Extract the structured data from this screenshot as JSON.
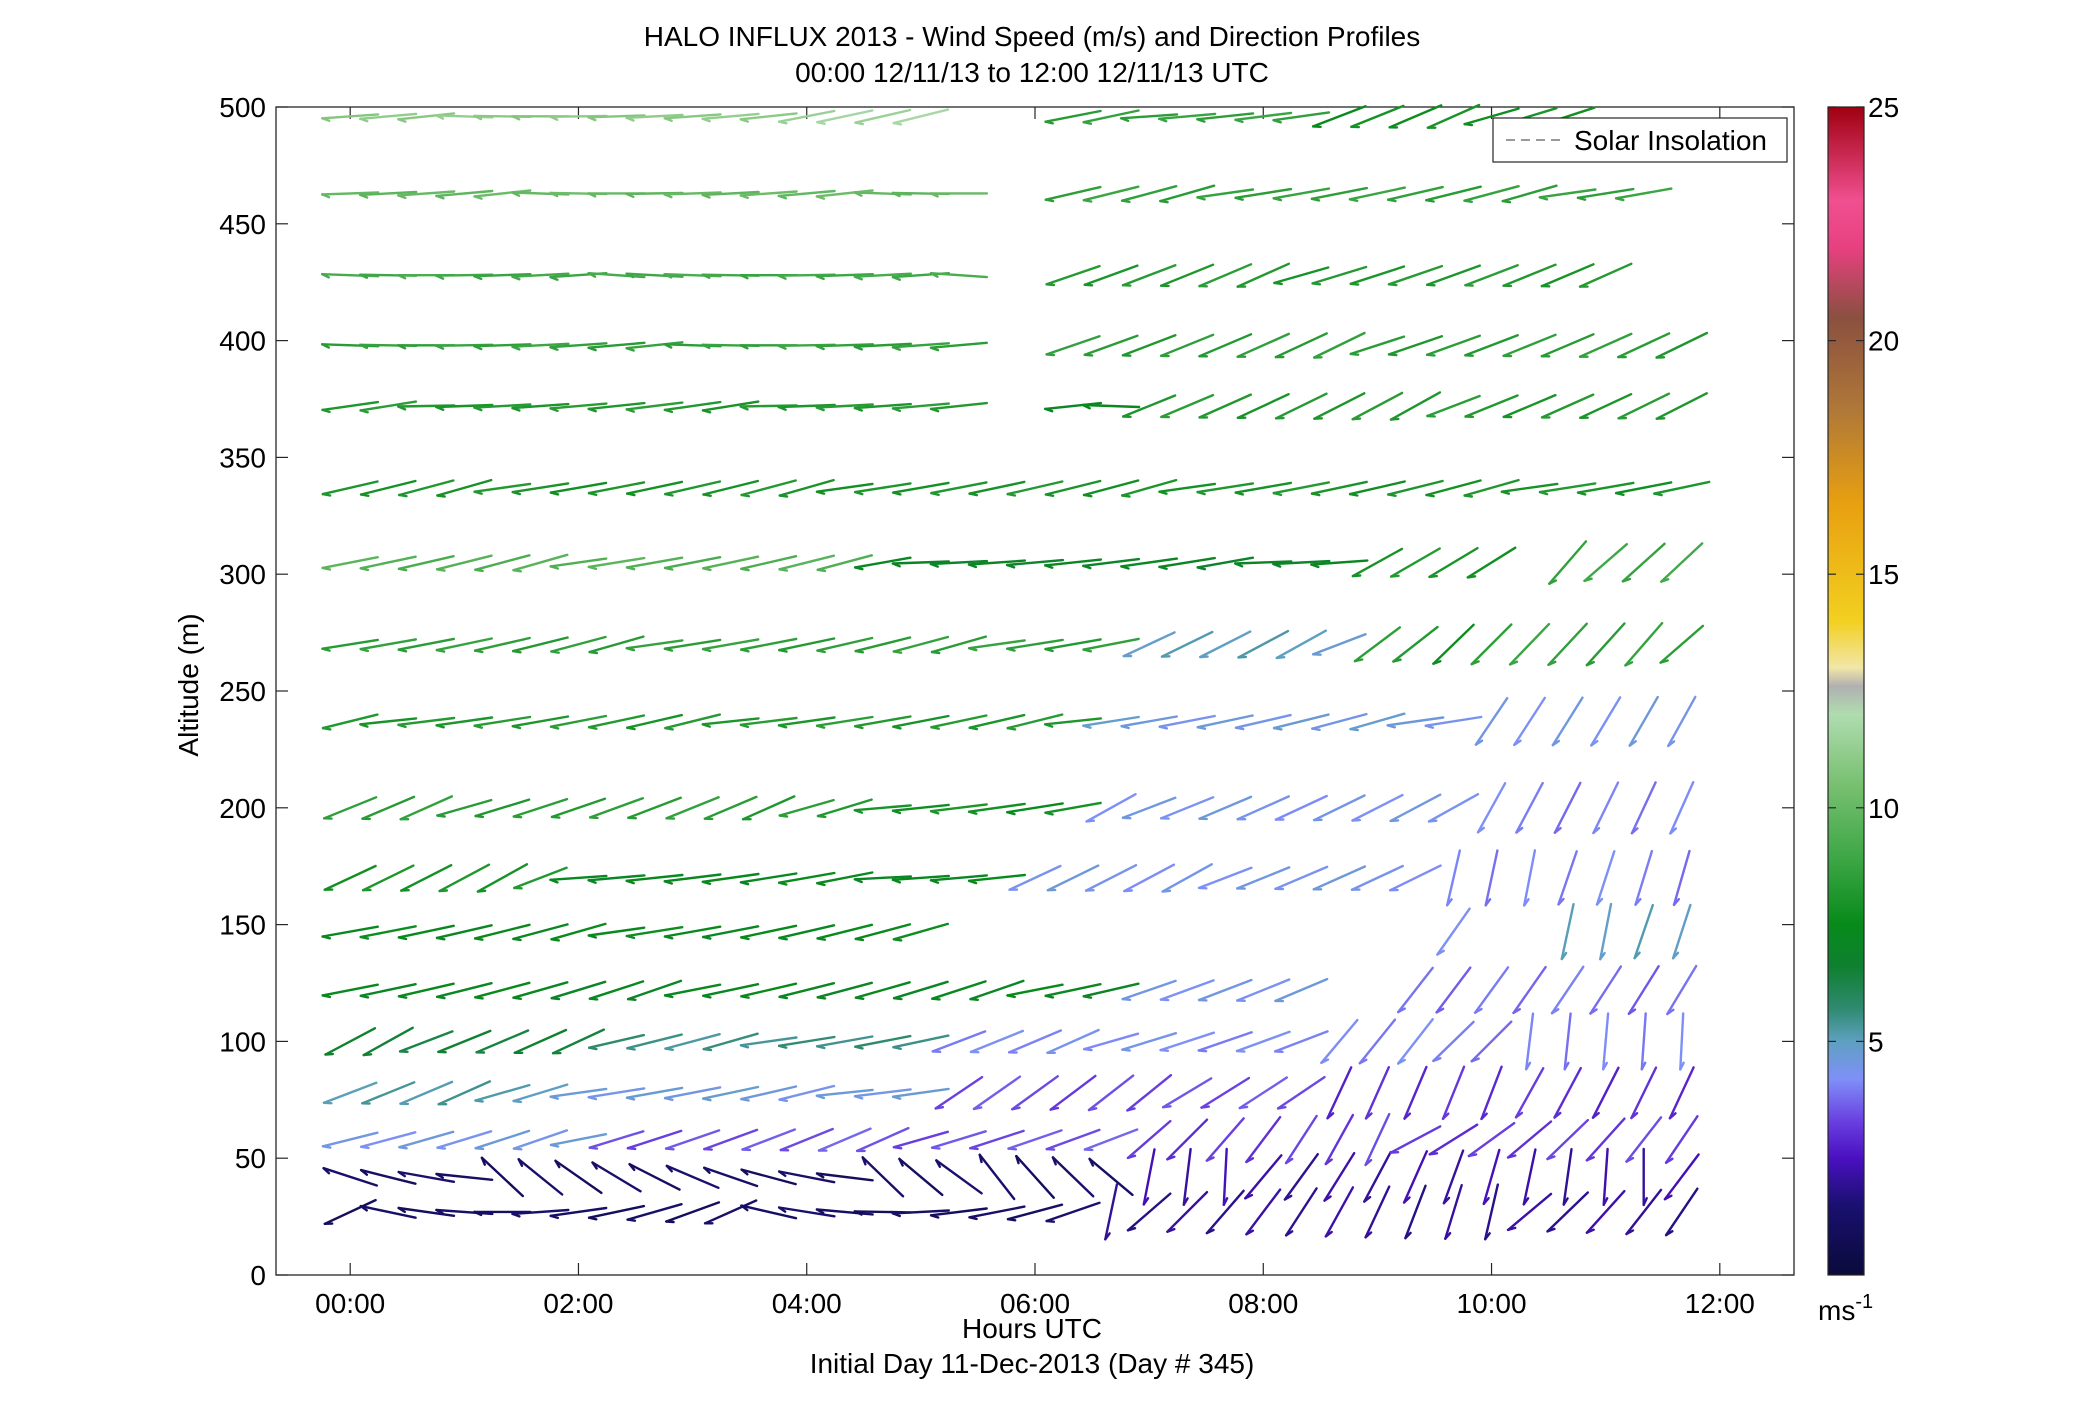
{
  "chart_data": {
    "type": "wind-barb-profile",
    "title": "HALO INFLUX 2013 - Wind Speed (m/s) and Direction Profiles",
    "subtitle": "00:00 12/11/13 to 12:00 12/11/13  UTC",
    "xlabel": "Hours UTC",
    "xlabel2": "Initial Day 11-Dec-2013 (Day # 345)",
    "ylabel": "Altitude (m)",
    "xlim": [
      -0.65,
      12.65
    ],
    "ylim": [
      0,
      500
    ],
    "x_ticks": [
      {
        "value": 0,
        "label": "00:00"
      },
      {
        "value": 2,
        "label": "02:00"
      },
      {
        "value": 4,
        "label": "04:00"
      },
      {
        "value": 6,
        "label": "06:00"
      },
      {
        "value": 8,
        "label": "08:00"
      },
      {
        "value": 10,
        "label": "10:00"
      },
      {
        "value": 12,
        "label": "12:00"
      }
    ],
    "y_ticks": [
      {
        "value": 0,
        "label": "0"
      },
      {
        "value": 50,
        "label": "50"
      },
      {
        "value": 100,
        "label": "100"
      },
      {
        "value": 150,
        "label": "150"
      },
      {
        "value": 200,
        "label": "200"
      },
      {
        "value": 250,
        "label": "250"
      },
      {
        "value": 300,
        "label": "300"
      },
      {
        "value": 350,
        "label": "350"
      },
      {
        "value": 400,
        "label": "400"
      },
      {
        "value": 450,
        "label": "450"
      },
      {
        "value": 500,
        "label": "500"
      }
    ],
    "legend": {
      "label": "Solar Insolation",
      "placement": "top-right",
      "style": "dashed",
      "color": "#999999"
    },
    "colorbar": {
      "range": [
        0,
        25
      ],
      "unit_base": "ms",
      "unit_exp": "-1",
      "ticks": [
        {
          "value": 5,
          "label": "5"
        },
        {
          "value": 10,
          "label": "10"
        },
        {
          "value": 15,
          "label": "15"
        },
        {
          "value": 20,
          "label": "20"
        },
        {
          "value": 25,
          "label": "25"
        }
      ],
      "stops": [
        {
          "v": 0,
          "c": "#0a0a3a"
        },
        {
          "v": 1.5,
          "c": "#1a1070"
        },
        {
          "v": 2.5,
          "c": "#4a10c0"
        },
        {
          "v": 3.3,
          "c": "#6a40e0"
        },
        {
          "v": 4.2,
          "c": "#7f90f8"
        },
        {
          "v": 5.0,
          "c": "#5ea0c0"
        },
        {
          "v": 5.7,
          "c": "#2f8a70"
        },
        {
          "v": 6.6,
          "c": "#0f8030"
        },
        {
          "v": 7.5,
          "c": "#078a1a"
        },
        {
          "v": 9.0,
          "c": "#40a848"
        },
        {
          "v": 10.5,
          "c": "#78c070"
        },
        {
          "v": 12.0,
          "c": "#b0dcb0"
        },
        {
          "v": 12.6,
          "c": "#b0b0b0"
        },
        {
          "v": 13.0,
          "c": "#f2e6a8"
        },
        {
          "v": 14.0,
          "c": "#f2d020"
        },
        {
          "v": 16.5,
          "c": "#e8a010"
        },
        {
          "v": 18.5,
          "c": "#b07838"
        },
        {
          "v": 20.5,
          "c": "#8a5040"
        },
        {
          "v": 22.0,
          "c": "#e84080"
        },
        {
          "v": 23.0,
          "c": "#f05090"
        },
        {
          "v": 25.0,
          "c": "#a00010"
        }
      ]
    },
    "rows": [
      {
        "alt": 27,
        "start": 0,
        "segments": [
          {
            "n": 20,
            "dir": 265,
            "speed": 1.2,
            "vary": 1
          },
          {
            "n": 16,
            "dir": 210,
            "speed": 2.0,
            "vary": 1
          }
        ]
      },
      {
        "alt": 42,
        "start": 0,
        "segments": [
          {
            "n": 17,
            "dir": 295,
            "speed": 1.2,
            "vary": 1
          },
          {
            "n": 4,
            "dir": 315,
            "speed": 1.3,
            "vary": 1
          },
          {
            "n": 15,
            "dir": 200,
            "speed": 2.2,
            "vary": 1
          }
        ]
      },
      {
        "alt": 58,
        "start": 0,
        "segments": [
          {
            "n": 7,
            "dir": 255,
            "speed": 4.5,
            "vary": 0
          },
          {
            "n": 14,
            "dir": 250,
            "speed": 3.5,
            "vary": 0
          },
          {
            "n": 15,
            "dir": 225,
            "speed": 3.2,
            "vary": 1
          }
        ]
      },
      {
        "alt": 78,
        "start": 0,
        "segments": [
          {
            "n": 6,
            "dir": 250,
            "speed": 5.2,
            "vary": 0
          },
          {
            "n": 10,
            "dir": 260,
            "speed": 4.6,
            "vary": 0
          },
          {
            "n": 10,
            "dir": 235,
            "speed": 3.4,
            "vary": 0
          },
          {
            "n": 10,
            "dir": 205,
            "speed": 3.0,
            "vary": 0
          }
        ]
      },
      {
        "alt": 100,
        "start": 0,
        "segments": [
          {
            "n": 7,
            "dir": 245,
            "speed": 6.5,
            "vary": 0
          },
          {
            "n": 9,
            "dir": 258,
            "speed": 5.5,
            "vary": 0
          },
          {
            "n": 10,
            "dir": 250,
            "speed": 4.2,
            "vary": 0
          },
          {
            "n": 5,
            "dir": 222,
            "speed": 4.0,
            "vary": 0
          },
          {
            "n": 5,
            "dir": 185,
            "speed": 4.0,
            "vary": 0
          }
        ]
      },
      {
        "alt": 122,
        "start": 0,
        "segments": [
          {
            "n": 21,
            "dir": 255,
            "speed": 7.2,
            "vary": 0
          },
          {
            "n": 5,
            "dir": 250,
            "speed": 4.4,
            "vary": 0
          },
          {
            "n": 2,
            "skip": true
          },
          {
            "n": 8,
            "dir": 215,
            "speed": 3.8,
            "vary": 0
          }
        ]
      },
      {
        "alt": 147,
        "start": 0,
        "segments": [
          {
            "n": 16,
            "dir": 258,
            "speed": 7.4,
            "vary": 0
          },
          {
            "n": 13,
            "skip": true
          },
          {
            "n": 1,
            "dir": 215,
            "speed": 4.0,
            "vary": 0
          },
          {
            "n": 2,
            "skip": true
          },
          {
            "n": 4,
            "dir": 195,
            "speed": 5.0,
            "vary": 0
          }
        ]
      },
      {
        "alt": 170,
        "start": 0,
        "segments": [
          {
            "n": 6,
            "dir": 245,
            "speed": 8.0,
            "vary": 0
          },
          {
            "n": 12,
            "dir": 263,
            "speed": 7.3,
            "vary": 0
          },
          {
            "n": 11,
            "dir": 245,
            "speed": 4.4,
            "vary": 0
          },
          {
            "n": 7,
            "dir": 195,
            "speed": 4.0,
            "vary": 0
          }
        ]
      },
      {
        "alt": 200,
        "start": 0,
        "segments": [
          {
            "n": 14,
            "dir": 250,
            "speed": 8.4,
            "vary": 0
          },
          {
            "n": 6,
            "dir": 263,
            "speed": 7.8,
            "vary": 0
          },
          {
            "n": 10,
            "dir": 245,
            "speed": 4.4,
            "vary": 0
          },
          {
            "n": 6,
            "dir": 205,
            "speed": 4.0,
            "vary": 0
          }
        ]
      },
      {
        "alt": 237,
        "start": 0,
        "segments": [
          {
            "n": 20,
            "dir": 260,
            "speed": 8.2,
            "vary": 0
          },
          {
            "n": 10,
            "dir": 258,
            "speed": 4.6,
            "vary": 0
          },
          {
            "n": 6,
            "dir": 212,
            "speed": 4.4,
            "vary": 0
          }
        ]
      },
      {
        "alt": 270,
        "start": 0,
        "segments": [
          {
            "n": 21,
            "dir": 258,
            "speed": 8.5,
            "vary": 0
          },
          {
            "n": 6,
            "dir": 245,
            "speed": 5.0,
            "vary": 0
          },
          {
            "n": 2,
            "dir": 230,
            "speed": 8.4,
            "vary": 0
          },
          {
            "n": 1,
            "dir": 225,
            "speed": 7.5,
            "vary": 0
          },
          {
            "n": 6,
            "dir": 225,
            "speed": 8.6,
            "vary": 0
          }
        ]
      },
      {
        "alt": 305,
        "start": 0,
        "segments": [
          {
            "n": 14,
            "dir": 258,
            "speed": 9.5,
            "vary": 0
          },
          {
            "n": 13,
            "dir": 264,
            "speed": 7.0,
            "vary": 0
          },
          {
            "n": 4,
            "dir": 240,
            "speed": 8.0,
            "vary": 0
          },
          {
            "n": 1,
            "skip": true
          },
          {
            "n": 4,
            "dir": 225,
            "speed": 8.8,
            "vary": 0
          }
        ]
      },
      {
        "alt": 337,
        "start": 0,
        "segments": [
          {
            "n": 36,
            "dir": 258,
            "speed": 8.0,
            "vary": 0
          }
        ]
      },
      {
        "alt": 372,
        "start": 0,
        "segments": [
          {
            "n": 17,
            "dir": 265,
            "speed": 8.2,
            "vary": 0
          },
          {
            "n": 2,
            "skip": true
          },
          {
            "n": 2,
            "dir": 268,
            "speed": 7.2,
            "vary": 0
          },
          {
            "n": 15,
            "dir": 245,
            "speed": 8.2,
            "vary": 0
          }
        ]
      },
      {
        "alt": 398,
        "start": 0,
        "segments": [
          {
            "n": 17,
            "dir": 268,
            "speed": 8.6,
            "vary": 0
          },
          {
            "n": 2,
            "skip": true
          },
          {
            "n": 17,
            "dir": 248,
            "speed": 8.4,
            "vary": 0
          }
        ]
      },
      {
        "alt": 428,
        "start": 0,
        "segments": [
          {
            "n": 17,
            "dir": 270,
            "speed": 9.0,
            "vary": 0
          },
          {
            "n": 2,
            "skip": true
          },
          {
            "n": 15,
            "dir": 250,
            "speed": 8.2,
            "vary": 0
          }
        ]
      },
      {
        "alt": 463,
        "start": 0,
        "segments": [
          {
            "n": 17,
            "dir": 268,
            "speed": 10.0,
            "vary": 0
          },
          {
            "n": 2,
            "skip": true
          },
          {
            "n": 16,
            "dir": 258,
            "speed": 8.6,
            "vary": 0
          }
        ]
      },
      {
        "alt": 496,
        "start": 0,
        "segments": [
          {
            "n": 12,
            "dir": 268,
            "speed": 11.0,
            "vary": 0
          },
          {
            "n": 4,
            "dir": 255,
            "speed": 11.6,
            "vary": 0
          },
          {
            "n": 3,
            "skip": true
          },
          {
            "n": 7,
            "dir": 262,
            "speed": 8.6,
            "vary": 0
          },
          {
            "n": 7,
            "dir": 250,
            "speed": 7.8,
            "vary": 0
          }
        ]
      }
    ]
  }
}
